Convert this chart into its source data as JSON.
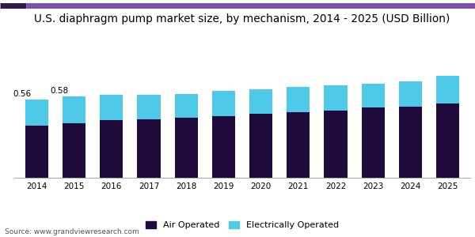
{
  "title": "U.S. diaphragm pump market size, by mechanism, 2014 - 2025 (USD Billion)",
  "years": [
    2014,
    2015,
    2016,
    2017,
    2018,
    2019,
    2020,
    2021,
    2022,
    2023,
    2024,
    2025
  ],
  "air_operated": [
    0.37,
    0.39,
    0.41,
    0.42,
    0.43,
    0.44,
    0.46,
    0.47,
    0.48,
    0.5,
    0.51,
    0.53
  ],
  "electrically_operated": [
    0.19,
    0.19,
    0.18,
    0.17,
    0.17,
    0.18,
    0.17,
    0.18,
    0.18,
    0.17,
    0.18,
    0.2
  ],
  "annotations": [
    {
      "year": 2014,
      "label": "0.56"
    },
    {
      "year": 2015,
      "label": "0.58"
    }
  ],
  "air_color": "#1f0a3c",
  "elec_color": "#4ec9e8",
  "bar_width": 0.62,
  "ylim": [
    0,
    1.05
  ],
  "legend_labels": [
    "Air Operated",
    "Electrically Operated"
  ],
  "source_text": "Source: www.grandviewresearch.com",
  "title_fontsize": 9.8,
  "label_fontsize": 8.0,
  "tick_fontsize": 7.5,
  "source_fontsize": 6.5,
  "annotation_fontsize": 7.5,
  "background_color": "#ffffff",
  "top_bar_color1": "#2d1b4e",
  "top_bar_color2": "#7b52ab"
}
